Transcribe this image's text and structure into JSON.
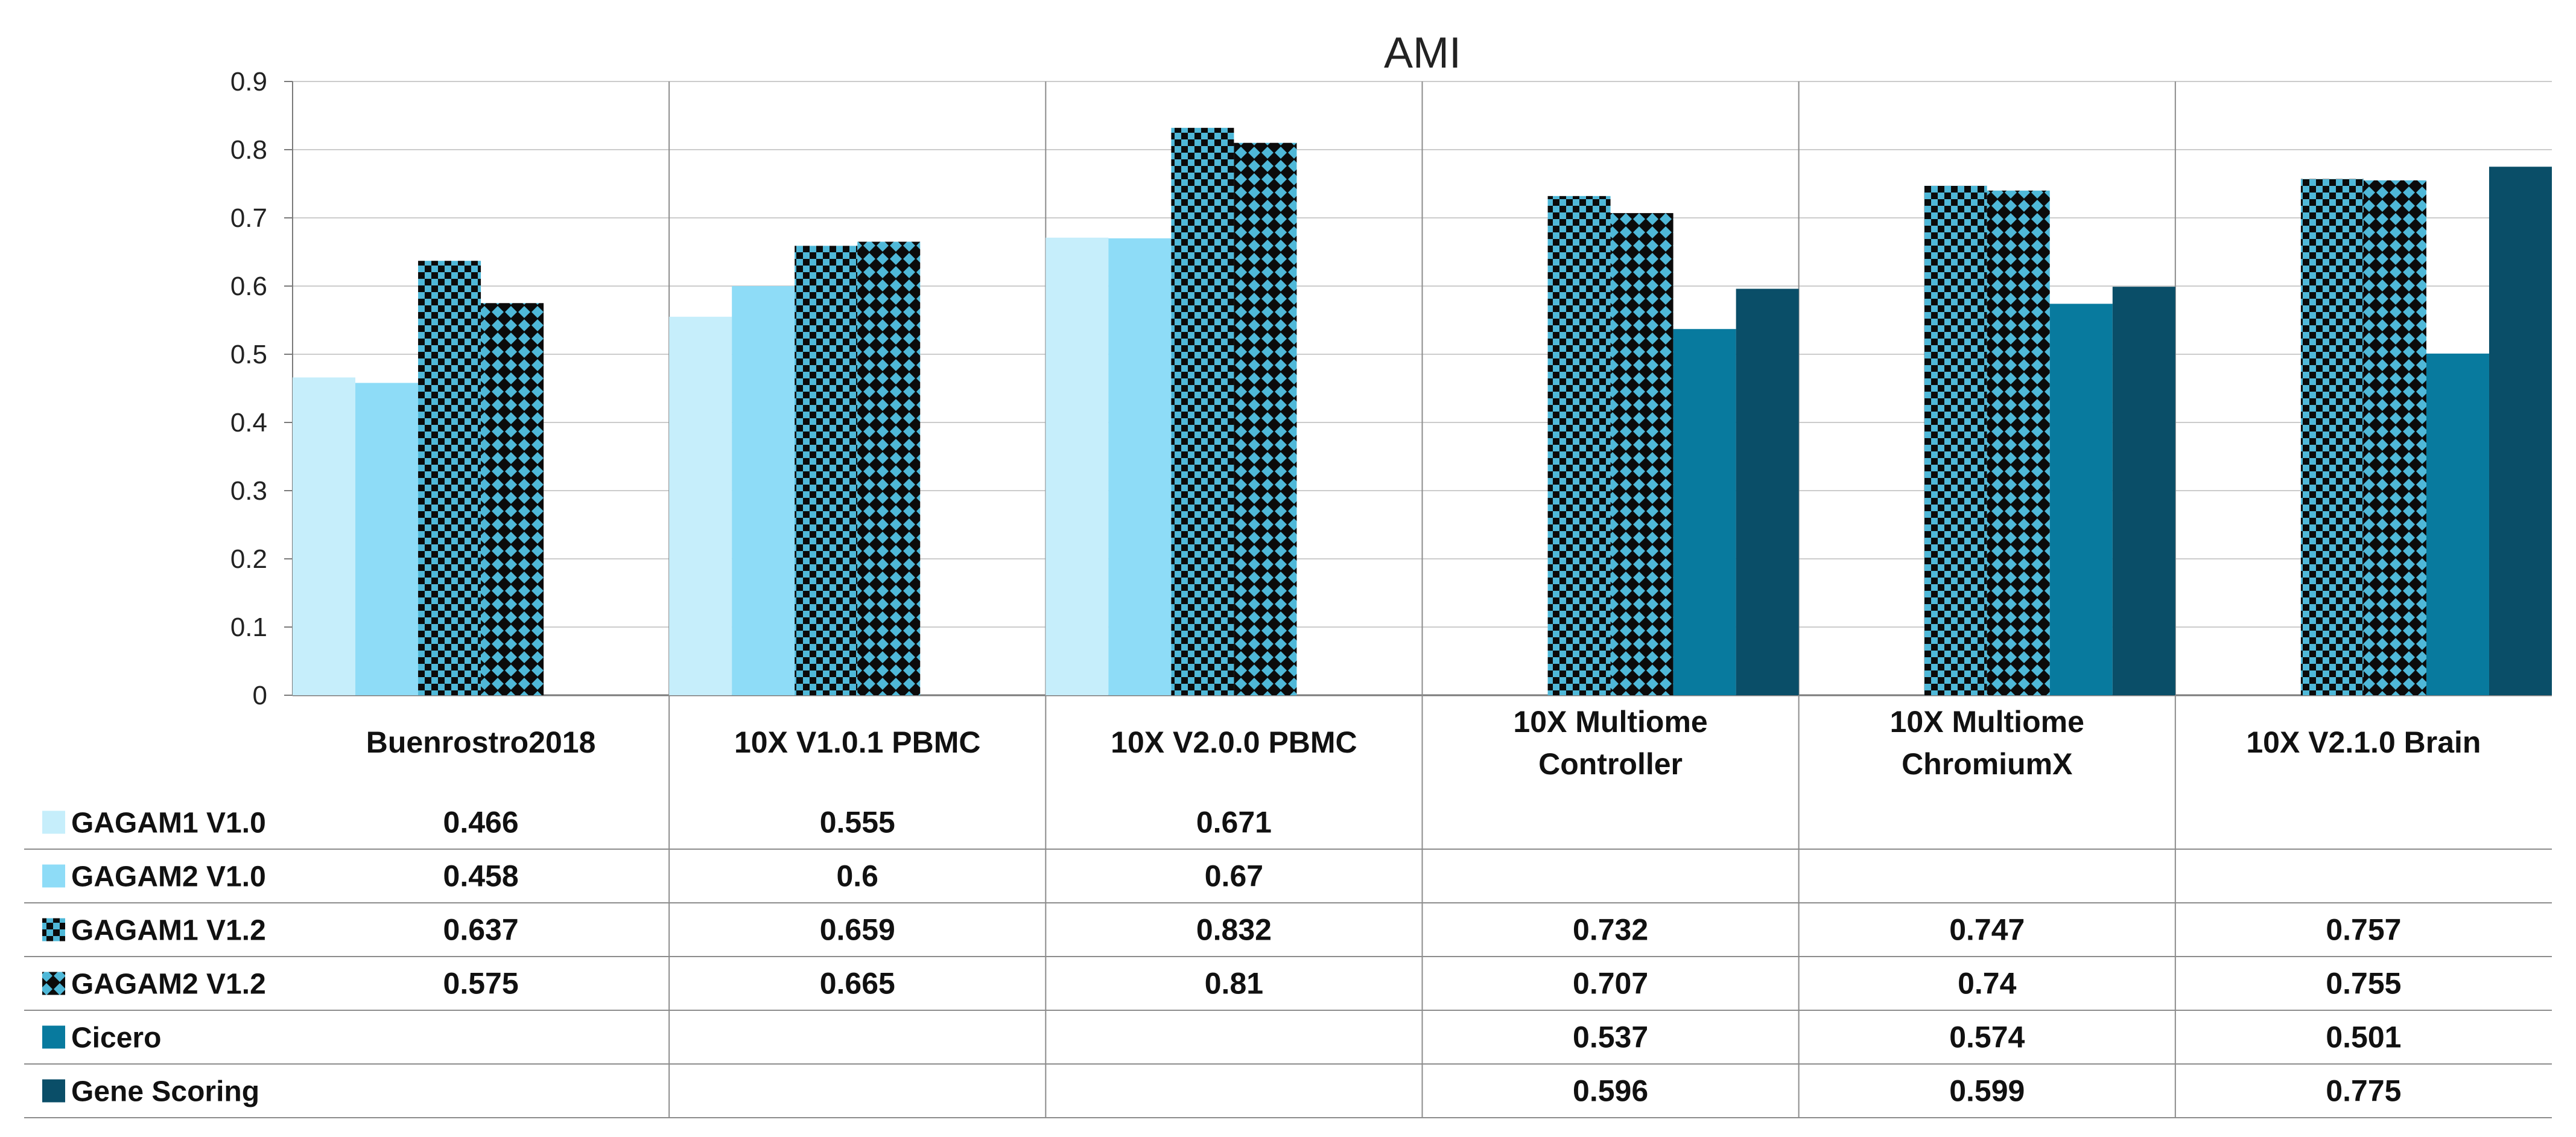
{
  "chart_data": {
    "type": "bar",
    "title": "AMI",
    "categories": [
      "Buenrostro2018",
      "10X V1.0.1 PBMC",
      "10X V2.0.0 PBMC",
      "10X Multiome Controller",
      "10X Multiome ChromiumX",
      "10X V2.1.0 Brain"
    ],
    "category_lines": [
      [
        "Buenrostro2018"
      ],
      [
        "10X V1.0.1 PBMC"
      ],
      [
        "10X V2.0.0 PBMC"
      ],
      [
        "10X Multiome",
        "Controller"
      ],
      [
        "10X Multiome",
        "ChromiumX"
      ],
      [
        "10X V2.1.0 Brain"
      ]
    ],
    "ylim": [
      0,
      0.9
    ],
    "yticks": [
      "0",
      "0.1",
      "0.2",
      "0.3",
      "0.4",
      "0.5",
      "0.6",
      "0.7",
      "0.8",
      "0.9"
    ],
    "grid": true,
    "legend_position": "data-table-below",
    "series": [
      {
        "name": "GAGAM1 V1.0",
        "color": "#c6eefb",
        "pattern": "solid",
        "values": [
          0.466,
          0.555,
          0.671,
          null,
          null,
          null
        ],
        "labels": [
          "0.466",
          "0.555",
          "0.671",
          "",
          "",
          ""
        ]
      },
      {
        "name": "GAGAM2 V1.0",
        "color": "#8edcf7",
        "pattern": "solid",
        "values": [
          0.458,
          0.6,
          0.67,
          null,
          null,
          null
        ],
        "labels": [
          "0.458",
          "0.6",
          "0.67",
          "",
          "",
          ""
        ]
      },
      {
        "name": "GAGAM1 V1.2",
        "color": "#4fb8d8",
        "pattern": "checker",
        "values": [
          0.637,
          0.659,
          0.832,
          0.732,
          0.747,
          0.757
        ],
        "labels": [
          "0.637",
          "0.659",
          "0.832",
          "0.732",
          "0.747",
          "0.757"
        ]
      },
      {
        "name": "GAGAM2 V1.2",
        "color": "#4fb8d8",
        "pattern": "diamond",
        "values": [
          0.575,
          0.665,
          0.81,
          0.707,
          0.74,
          0.755
        ],
        "labels": [
          "0.575",
          "0.665",
          "0.81",
          "0.707",
          "0.74",
          "0.755"
        ]
      },
      {
        "name": "Cicero",
        "color": "#087a9e",
        "pattern": "solid",
        "values": [
          null,
          null,
          null,
          0.537,
          0.574,
          0.501
        ],
        "labels": [
          "",
          "",
          "",
          "0.537",
          "0.574",
          "0.501"
        ]
      },
      {
        "name": "Gene Scoring",
        "color": "#0a4e68",
        "pattern": "solid",
        "values": [
          null,
          null,
          null,
          0.596,
          0.599,
          0.775
        ],
        "labels": [
          "",
          "",
          "",
          "0.596",
          "0.599",
          "0.775"
        ]
      }
    ]
  }
}
